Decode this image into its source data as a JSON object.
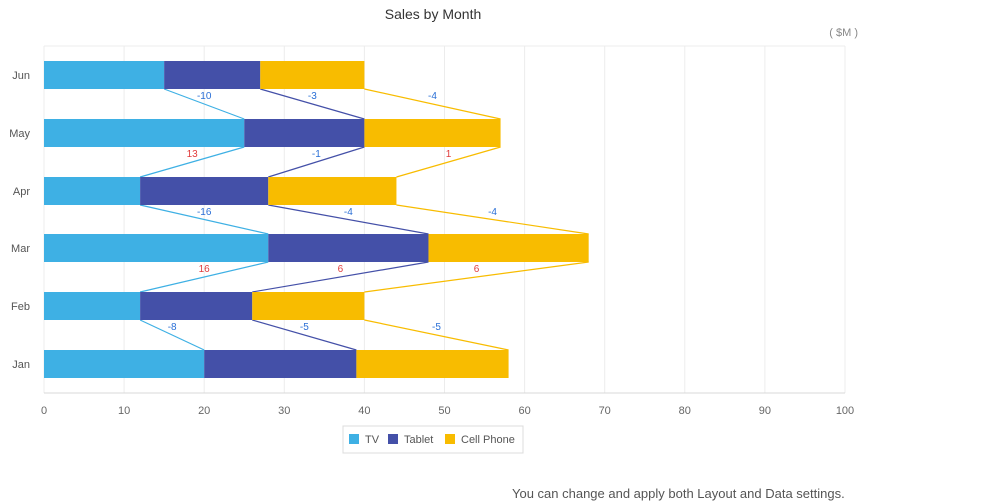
{
  "footer": {
    "note": "You can change and apply both Layout and Data settings."
  },
  "chart_data": {
    "type": "bar",
    "orientation": "horizontal",
    "stacked": true,
    "title": "Sales by Month",
    "unit": "( $M )",
    "categories": [
      "Jan",
      "Feb",
      "Mar",
      "Apr",
      "May",
      "Jun"
    ],
    "series": [
      {
        "name": "TV",
        "color": "#3eb0e4",
        "values": [
          20,
          12,
          28,
          12,
          25,
          15
        ]
      },
      {
        "name": "Tablet",
        "color": "#4450a8",
        "values": [
          19,
          14,
          20,
          16,
          15,
          12
        ]
      },
      {
        "name": "Cell Phone",
        "color": "#f8bc00",
        "values": [
          19,
          14,
          20,
          16,
          17,
          13
        ]
      }
    ],
    "change_labels": [
      {
        "between": [
          "Jan",
          "Feb"
        ],
        "values": [
          -8,
          -5,
          -5
        ]
      },
      {
        "between": [
          "Feb",
          "Mar"
        ],
        "values": [
          16,
          6,
          6
        ]
      },
      {
        "between": [
          "Mar",
          "Apr"
        ],
        "values": [
          -16,
          -4,
          -4
        ]
      },
      {
        "between": [
          "Apr",
          "May"
        ],
        "values": [
          13,
          -1,
          1
        ]
      },
      {
        "between": [
          "May",
          "Jun"
        ],
        "values": [
          -10,
          -3,
          -4
        ]
      }
    ],
    "positive_color": "#e03c3c",
    "negative_color": "#2a6fd6",
    "x_ticks": [
      0,
      10,
      20,
      30,
      40,
      50,
      60,
      70,
      80,
      90,
      100
    ],
    "xlim": [
      0,
      100
    ],
    "grid": true,
    "legend_position": "bottom"
  }
}
